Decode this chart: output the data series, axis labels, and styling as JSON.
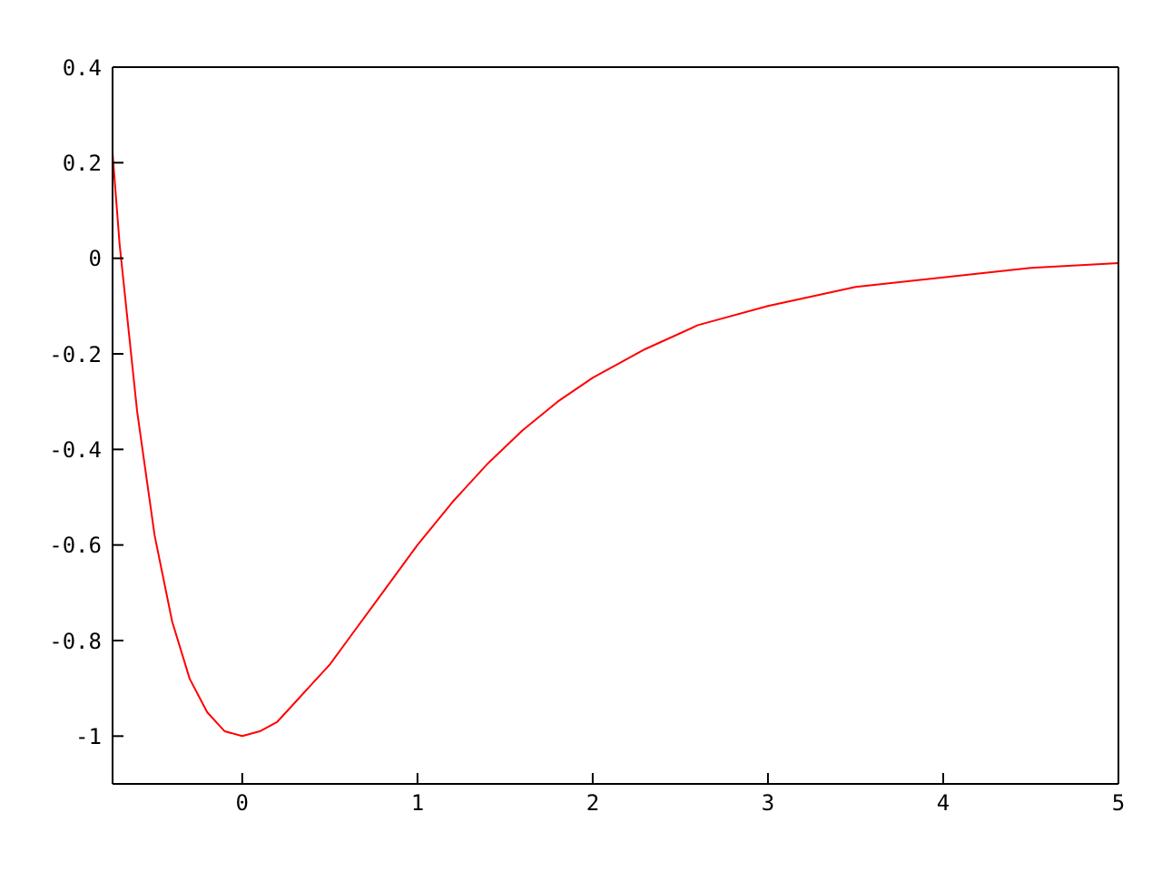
{
  "chart_data": {
    "type": "line",
    "x": [
      -0.74,
      -0.7,
      -0.6,
      -0.5,
      -0.4,
      -0.3,
      -0.2,
      -0.1,
      0,
      0.1,
      0.2,
      0.3,
      0.4,
      0.5,
      0.6,
      0.8,
      1.0,
      1.2,
      1.4,
      1.6,
      1.8,
      2.0,
      2.3,
      2.6,
      3.0,
      3.5,
      4.0,
      4.5,
      5.0
    ],
    "series": [
      {
        "color": "#ff0000",
        "values": [
          0.22,
          0.03,
          -0.32,
          -0.58,
          -0.76,
          -0.88,
          -0.95,
          -0.99,
          -1,
          -0.99,
          -0.97,
          -0.93,
          -0.89,
          -0.85,
          -0.8,
          -0.7,
          -0.6,
          -0.51,
          -0.43,
          -0.36,
          -0.3,
          -0.25,
          -0.19,
          -0.14,
          -0.1,
          -0.06,
          -0.04,
          -0.02,
          -0.01
        ]
      }
    ],
    "xlim": [
      -0.74,
      5
    ],
    "xticks": [
      0,
      1,
      2,
      3,
      4,
      5
    ],
    "ylim": [
      -1.1,
      0.4
    ],
    "yticks": [
      -1,
      -0.8,
      -0.6,
      -0.4,
      -0.2,
      0,
      0.2,
      0.4
    ],
    "grid": false,
    "marker": "none",
    "line_style": "solid"
  }
}
